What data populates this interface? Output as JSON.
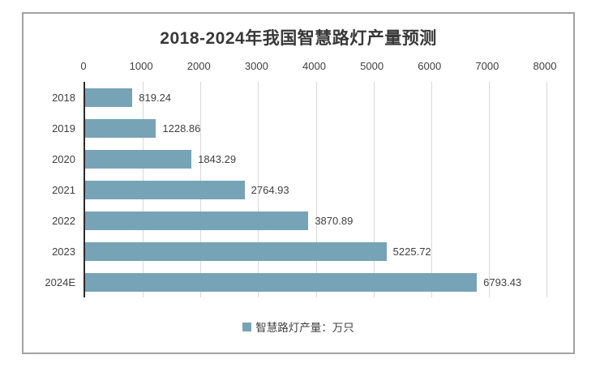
{
  "colors": {
    "bar": "#77a3b6",
    "axis_line": "#2b2b2b",
    "gridline": "#d9d9d9",
    "frame_border": "#a2a2a2",
    "text": "#404040",
    "title_text": "#383838"
  },
  "chart_data": {
    "type": "bar",
    "orientation": "horizontal",
    "title": "2018-2024年我国智慧路灯产量预测",
    "categories": [
      "2018",
      "2019",
      "2020",
      "2021",
      "2022",
      "2023",
      "2024E"
    ],
    "values": [
      819.24,
      1228.86,
      1843.29,
      2764.93,
      3870.89,
      5225.72,
      6793.43
    ],
    "value_labels": [
      "819.24",
      "1228.86",
      "1843.29",
      "2764.93",
      "3870.89",
      "5225.72",
      "6793.43"
    ],
    "xlim": [
      0,
      8000
    ],
    "x_ticks": [
      0,
      1000,
      2000,
      3000,
      4000,
      5000,
      6000,
      7000,
      8000
    ],
    "axis_position": "top",
    "grid": true,
    "legend": {
      "label": "智慧路灯产量：万只",
      "position": "bottom"
    }
  }
}
